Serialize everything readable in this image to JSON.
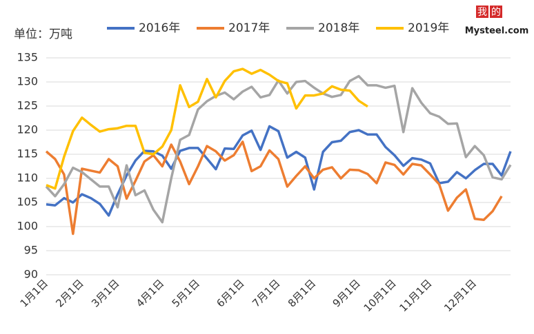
{
  "chart_data": {
    "type": "line",
    "unit_label": "单位：万吨",
    "categories": [
      "1月1日",
      null,
      null,
      null,
      "2月1日",
      null,
      null,
      null,
      "3月1日",
      null,
      null,
      null,
      null,
      "4月1日",
      null,
      null,
      null,
      "5月1日",
      null,
      null,
      null,
      null,
      "6月1日",
      null,
      null,
      null,
      "7月1日",
      null,
      null,
      null,
      "8月1日",
      null,
      null,
      null,
      null,
      "9月1日",
      null,
      null,
      null,
      "10月1日",
      null,
      null,
      null,
      "11月1日",
      null,
      null,
      null,
      null,
      "12月1日",
      null,
      null,
      null,
      null
    ],
    "series": [
      {
        "name": "2016年",
        "color": "#4472c4",
        "values": [
          104.6,
          104.4,
          105.9,
          105,
          106.7,
          105.9,
          104.7,
          102.3,
          106.7,
          110.6,
          113.7,
          115.7,
          115.6,
          114.7,
          112,
          115.7,
          116.3,
          116.3,
          114.1,
          111.9,
          116.2,
          116.1,
          118.9,
          119.9,
          115.9,
          120.8,
          119.8,
          114.3,
          115.5,
          114.3,
          107.7,
          115.5,
          117.5,
          117.8,
          119.6,
          120,
          119.1,
          119.1,
          116.5,
          114.8,
          112.6,
          114.2,
          113.9,
          113.1,
          109,
          109.3,
          111.3,
          110,
          111.7,
          113,
          113,
          110.6,
          115.6
        ]
      },
      {
        "name": "2017年",
        "color": "#ed7d31",
        "values": [
          115.6,
          114,
          110.8,
          98.5,
          112,
          111.6,
          111.2,
          114,
          112.5,
          105.8,
          109.5,
          113.5,
          114.8,
          112.5,
          117,
          113.5,
          108.8,
          112.5,
          116.7,
          115.6,
          113.7,
          114.8,
          117.6,
          111.5,
          112.5,
          115.8,
          114,
          108.3,
          110.5,
          112.5,
          110,
          111.8,
          112.3,
          110,
          111.8,
          111.7,
          110.9,
          109,
          113.3,
          112.8,
          110.8,
          113,
          112.7,
          110.8,
          108.8,
          103.3,
          106,
          107.7,
          101.6,
          101.4,
          103.2,
          106.3,
          null
        ]
      },
      {
        "name": "2018年",
        "color": "#a5a5a5",
        "values": [
          108.3,
          106.3,
          108.8,
          112.2,
          111.3,
          109.8,
          108.3,
          108.3,
          104,
          112.7,
          106.5,
          107.5,
          103.5,
          100.9,
          110,
          118,
          119,
          124.3,
          126,
          127.1,
          127.8,
          126.4,
          128,
          129,
          126.8,
          127.3,
          130.3,
          127.6,
          130,
          130.2,
          128.8,
          127.6,
          126.9,
          127.3,
          130.2,
          131.2,
          129.3,
          129.3,
          128.8,
          129.2,
          119.6,
          128.7,
          125.7,
          123.5,
          122.8,
          121.3,
          121.4,
          114.4,
          116.7,
          114.8,
          110.2,
          109.8,
          112.8
        ]
      },
      {
        "name": "2019年",
        "color": "#ffc000",
        "values": [
          108.6,
          107.9,
          114.5,
          119.8,
          122.6,
          121.1,
          119.7,
          120.2,
          120.4,
          120.9,
          120.9,
          115.3,
          115,
          116.6,
          120,
          129.3,
          124.8,
          125.9,
          130.6,
          126.8,
          130.2,
          132.2,
          132.7,
          131.7,
          132.5,
          131.5,
          130.2,
          129.7,
          124.5,
          127.2,
          127.2,
          127.6,
          129.1,
          128.4,
          128.2,
          126.1,
          124.9,
          null,
          null,
          null,
          null,
          null,
          null,
          null,
          null,
          null,
          null,
          null,
          null,
          null,
          null,
          null,
          null
        ]
      }
    ],
    "ylim": [
      90,
      135
    ],
    "yticks": [
      90,
      95,
      100,
      105,
      110,
      115,
      120,
      125,
      130,
      135
    ],
    "grid": true,
    "legend": "top"
  },
  "logo": {
    "chars": [
      "我",
      "的"
    ],
    "site": "Mysteel.com"
  }
}
